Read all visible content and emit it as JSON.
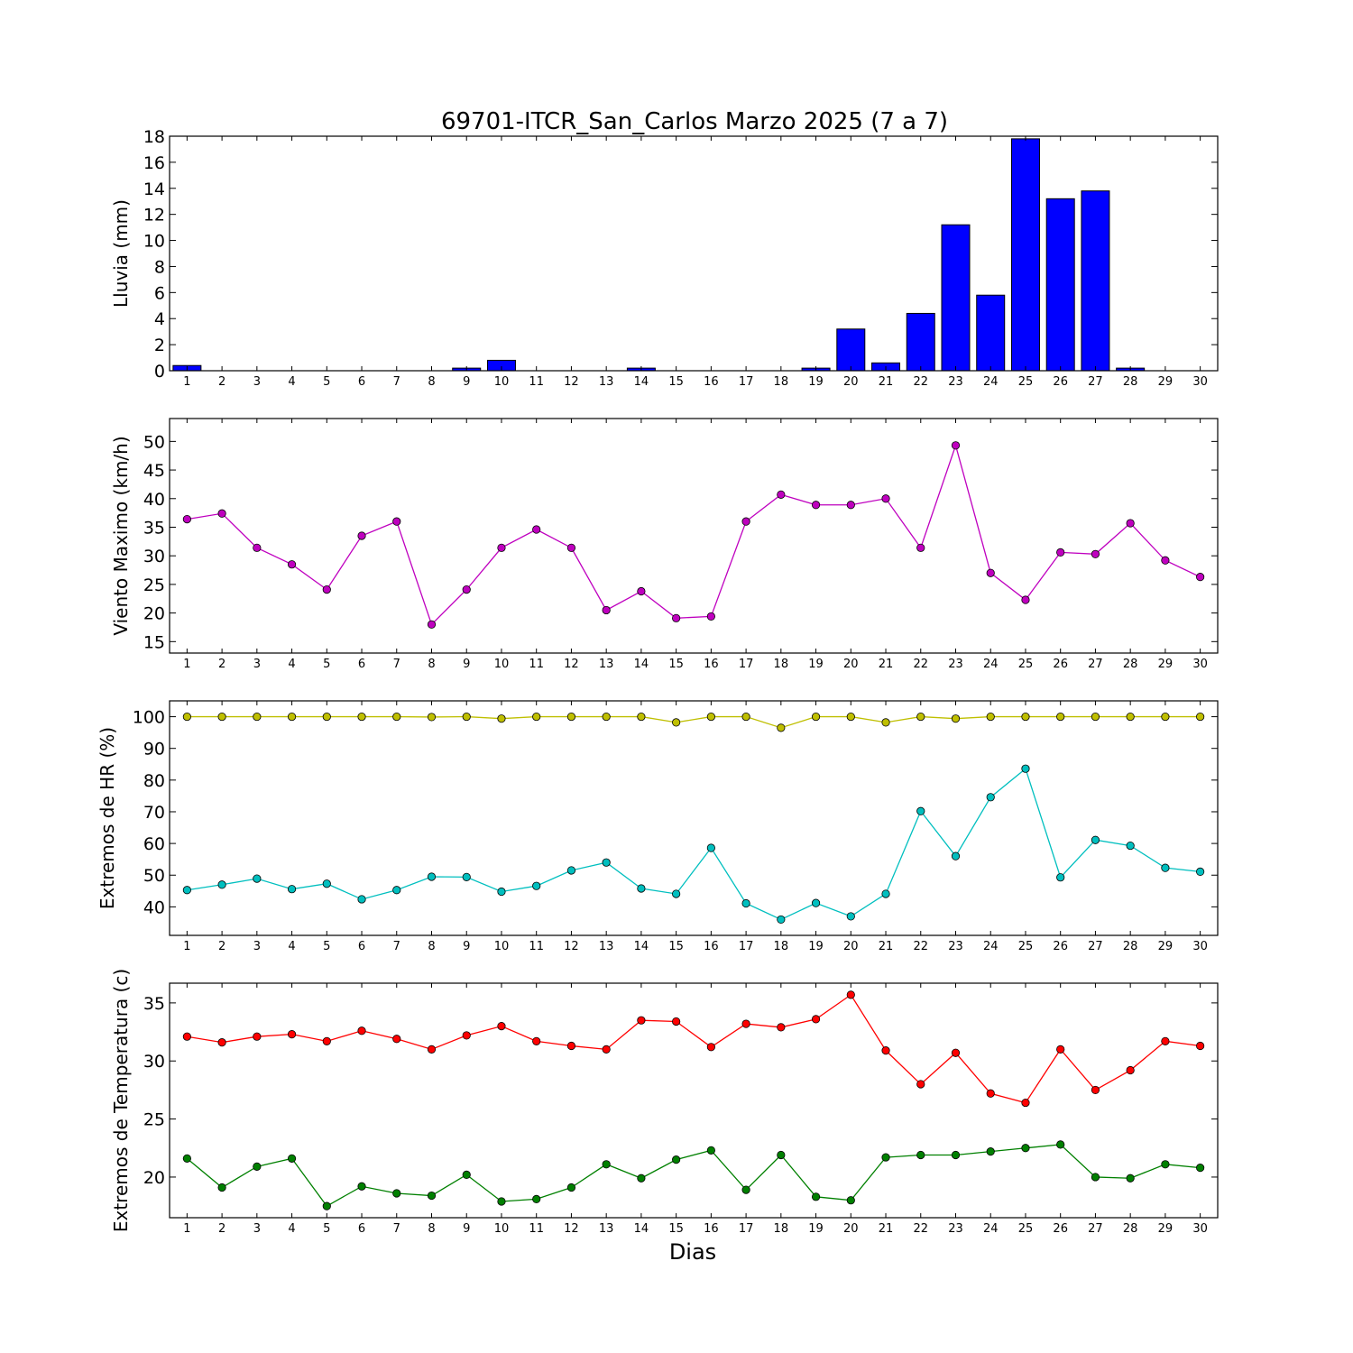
{
  "figure": {
    "title": "69701-ITCR_San_Carlos Marzo 2025  (7 a 7)",
    "xlabel": "Dias"
  },
  "chart_data": [
    {
      "type": "bar",
      "id": "lluvia",
      "ylabel": "Lluvia (mm)",
      "x": [
        1,
        2,
        3,
        4,
        5,
        6,
        7,
        8,
        9,
        10,
        11,
        12,
        13,
        14,
        15,
        16,
        17,
        18,
        19,
        20,
        21,
        22,
        23,
        24,
        25,
        26,
        27,
        28,
        29,
        30
      ],
      "xlim": [
        0.5,
        30.5
      ],
      "ylim": [
        0,
        18
      ],
      "yticks": [
        0,
        2,
        4,
        6,
        8,
        10,
        12,
        14,
        16,
        18
      ],
      "series": [
        {
          "color": "#0000ff",
          "values": [
            0.4,
            0,
            0,
            0,
            0,
            0,
            0,
            0,
            0.2,
            0.8,
            0,
            0,
            0,
            0.2,
            0,
            0,
            0,
            0,
            0.2,
            3.2,
            0.6,
            4.4,
            11.2,
            5.8,
            17.8,
            13.2,
            13.8,
            0.2,
            0,
            0
          ]
        }
      ]
    },
    {
      "type": "line",
      "id": "viento",
      "ylabel": "Viento Maximo (km/h)",
      "x": [
        1,
        2,
        3,
        4,
        5,
        6,
        7,
        8,
        9,
        10,
        11,
        12,
        13,
        14,
        15,
        16,
        17,
        18,
        19,
        20,
        21,
        22,
        23,
        24,
        25,
        26,
        27,
        28,
        29,
        30
      ],
      "xlim": [
        0.5,
        30.5
      ],
      "ylim": [
        13,
        54
      ],
      "yticks": [
        15,
        20,
        25,
        30,
        35,
        40,
        45,
        50
      ],
      "series": [
        {
          "color": "#bf00bf",
          "values": [
            36.4,
            37.4,
            31.4,
            28.5,
            24.1,
            33.5,
            36,
            18,
            24.1,
            31.4,
            34.6,
            31.4,
            20.5,
            23.8,
            19.1,
            19.4,
            36,
            40.7,
            38.9,
            38.9,
            40,
            31.4,
            49.3,
            27,
            22.3,
            30.6,
            30.3,
            35.7,
            29.2,
            26.3
          ]
        }
      ]
    },
    {
      "type": "line",
      "id": "hr",
      "ylabel": "Extremos de HR (%)",
      "x": [
        1,
        2,
        3,
        4,
        5,
        6,
        7,
        8,
        9,
        10,
        11,
        12,
        13,
        14,
        15,
        16,
        17,
        18,
        19,
        20,
        21,
        22,
        23,
        24,
        25,
        26,
        27,
        28,
        29,
        30
      ],
      "xlim": [
        0.5,
        30.5
      ],
      "ylim": [
        31,
        105
      ],
      "yticks": [
        40,
        50,
        60,
        70,
        80,
        90,
        100
      ],
      "series": [
        {
          "color": "#bfbf00",
          "values": [
            100,
            100,
            100,
            100,
            100,
            100,
            100,
            99.9,
            100,
            99.4,
            100,
            100,
            100,
            100,
            98.2,
            100,
            100,
            96.5,
            100,
            100,
            98.2,
            100,
            99.4,
            100,
            100,
            100,
            100,
            100,
            100,
            100
          ]
        },
        {
          "color": "#00bfbf",
          "values": [
            45.3,
            47,
            48.9,
            45.6,
            47.3,
            42.4,
            45.3,
            49.5,
            49.4,
            44.8,
            46.6,
            51.5,
            54,
            45.8,
            44.1,
            58.6,
            41.1,
            36,
            41.2,
            37,
            44.1,
            70.2,
            56,
            74.6,
            83.6,
            49.3,
            61.1,
            59.3,
            52.3,
            51.1
          ]
        }
      ]
    },
    {
      "type": "line",
      "id": "temperatura",
      "ylabel": "Extremos de Temperatura (c)",
      "x": [
        1,
        2,
        3,
        4,
        5,
        6,
        7,
        8,
        9,
        10,
        11,
        12,
        13,
        14,
        15,
        16,
        17,
        18,
        19,
        20,
        21,
        22,
        23,
        24,
        25,
        26,
        27,
        28,
        29,
        30
      ],
      "xlim": [
        0.5,
        30.5
      ],
      "ylim": [
        16.5,
        36.7
      ],
      "yticks": [
        20,
        25,
        30,
        35
      ],
      "series": [
        {
          "color": "#ff0000",
          "values": [
            32.1,
            31.6,
            32.1,
            32.3,
            31.7,
            32.6,
            31.9,
            31,
            32.2,
            33,
            31.7,
            31.3,
            31,
            33.5,
            33.4,
            31.2,
            33.2,
            32.9,
            33.6,
            35.7,
            30.9,
            28,
            30.7,
            27.2,
            26.4,
            31,
            27.5,
            29.2,
            31.7,
            31.3
          ]
        },
        {
          "color": "#008000",
          "values": [
            21.6,
            19.1,
            20.9,
            21.6,
            17.5,
            19.2,
            18.6,
            18.4,
            20.2,
            17.9,
            18.1,
            19.1,
            21.1,
            19.9,
            21.5,
            22.3,
            18.9,
            21.9,
            18.3,
            18,
            21.7,
            21.9,
            21.9,
            22.2,
            22.5,
            22.8,
            20,
            19.9,
            21.1,
            20.8
          ]
        }
      ]
    }
  ]
}
